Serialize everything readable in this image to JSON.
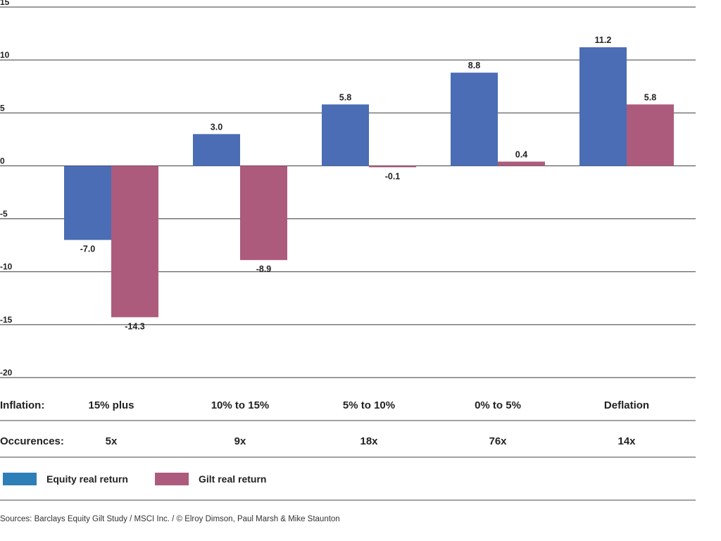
{
  "chart_data": {
    "type": "bar",
    "categories": [
      "15% plus",
      "10% to 15%",
      "5% to 10%",
      "0% to 5%",
      "Deflation"
    ],
    "series": [
      {
        "name": "Equity real return",
        "color": "#4a6db5",
        "values": [
          -7.0,
          3.0,
          5.8,
          8.8,
          11.2
        ]
      },
      {
        "name": "Gilt real return",
        "color": "#ad5b7d",
        "values": [
          -14.3,
          -8.9,
          -0.1,
          0.4,
          5.8
        ]
      }
    ],
    "data_labels": [
      [
        "-7.0",
        "3.0",
        "5.8",
        "8.8",
        "11.2"
      ],
      [
        "-14.3",
        "-8.9",
        "-0.1",
        "0.4",
        "5.8"
      ]
    ],
    "y_ticks": [
      "15",
      "10",
      "5",
      "0",
      "-5",
      "-10",
      "-15",
      "-20"
    ],
    "ylim": [
      -20,
      15
    ],
    "grid": "horizontal",
    "legend": "bottom-left",
    "title": "",
    "xlabel": "",
    "ylabel": ""
  },
  "rows": {
    "inflation_label": "Inflation:",
    "occurrences_label": "Occurences:",
    "occurrences": [
      "5x",
      "9x",
      "18x",
      "76x",
      "14x"
    ]
  },
  "legend_items": [
    {
      "label": "Equity real return",
      "color": "#2e7fb8"
    },
    {
      "label": "Gilt real return",
      "color": "#ad5b7d"
    }
  ],
  "source": "Sources: Barclays Equity Gilt Study / MSCI Inc. / © Elroy Dimson, Paul Marsh & Mike Staunton"
}
